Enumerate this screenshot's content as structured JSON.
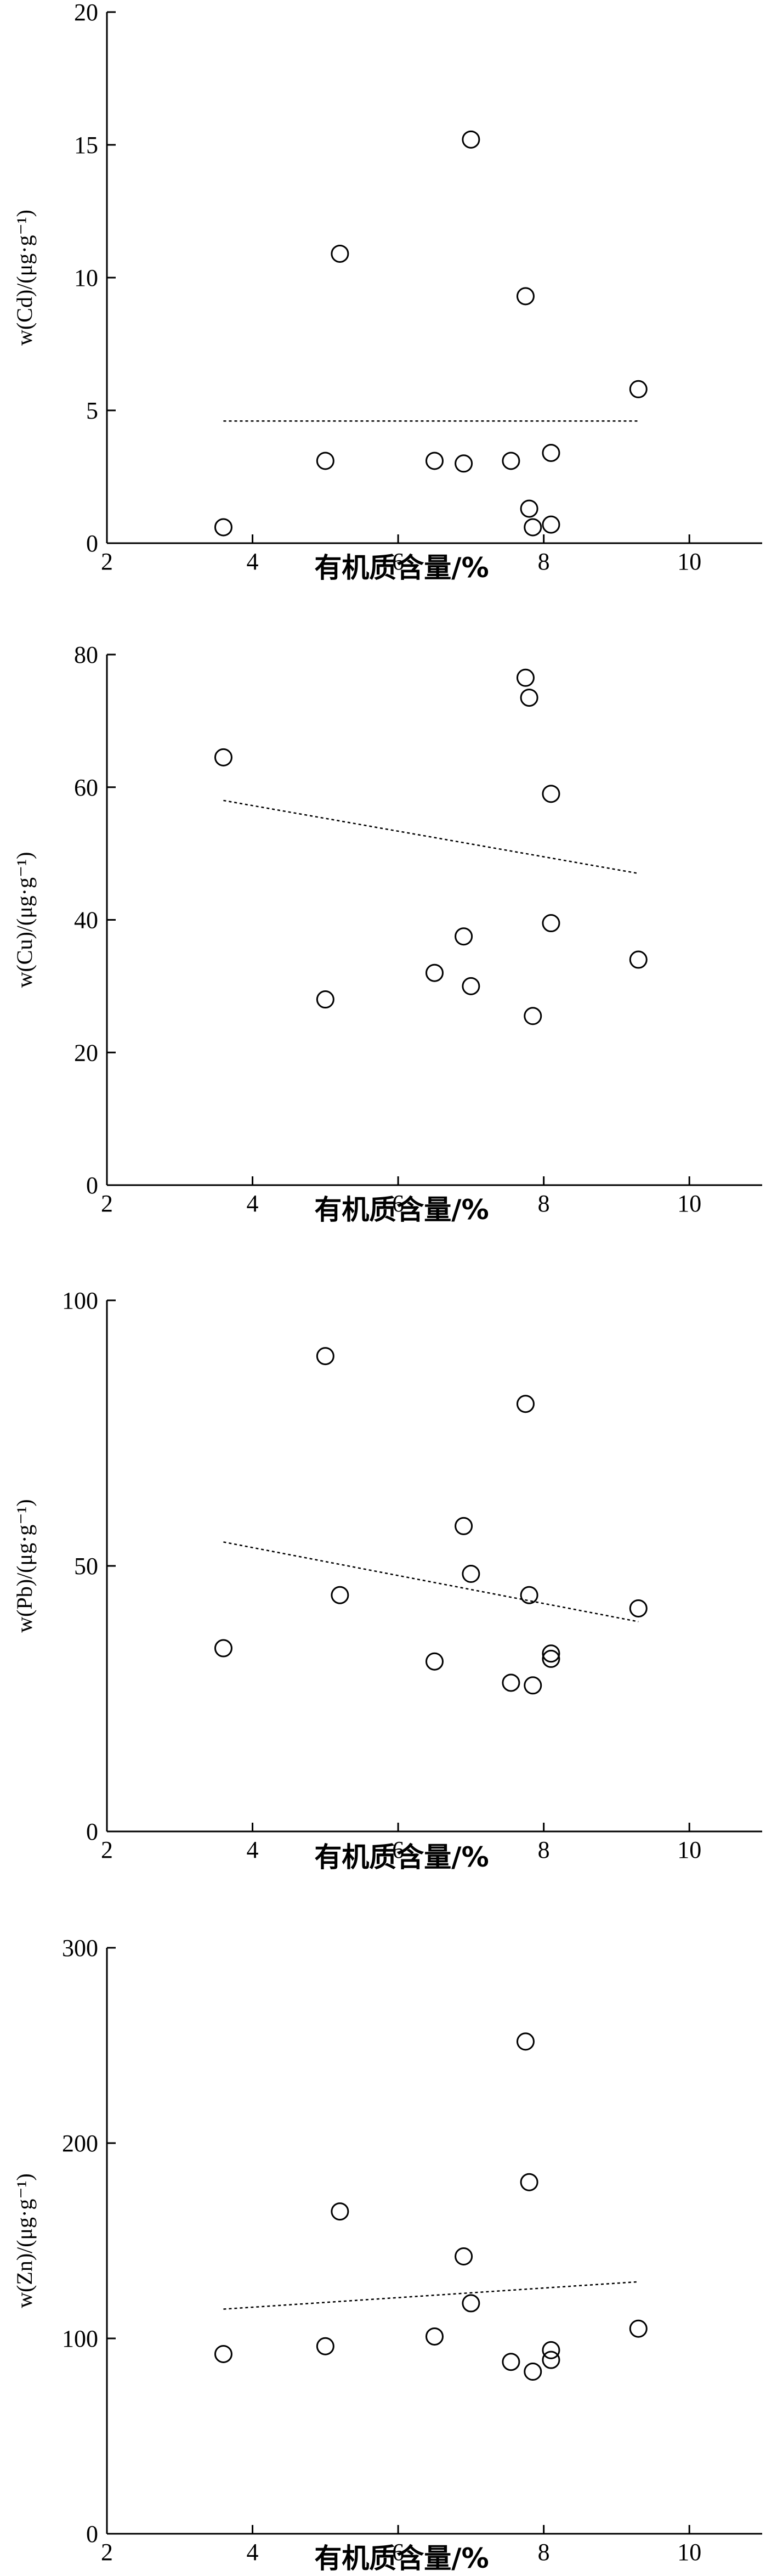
{
  "chart_data": [
    {
      "type": "scatter",
      "xlabel": "有机质含量/%",
      "ylabel": "w(Cd)/(μg·g⁻¹)",
      "xlim": [
        2,
        11
      ],
      "ylim": [
        0,
        20
      ],
      "xticks": [
        "2",
        "4",
        "6",
        "8",
        "10"
      ],
      "yticks": [
        "0",
        "5",
        "10",
        "15",
        "20"
      ],
      "xtick_values": [
        2,
        4,
        6,
        8,
        10
      ],
      "ytick_values": [
        0,
        5,
        10,
        15,
        20
      ],
      "points": [
        [
          3.6,
          0.6
        ],
        [
          5.0,
          3.1
        ],
        [
          5.2,
          10.9
        ],
        [
          6.5,
          3.1
        ],
        [
          6.9,
          3.0
        ],
        [
          7.0,
          15.2
        ],
        [
          7.55,
          3.1
        ],
        [
          7.75,
          9.3
        ],
        [
          7.8,
          1.3
        ],
        [
          7.85,
          0.6
        ],
        [
          8.1,
          3.4
        ],
        [
          8.1,
          0.7
        ],
        [
          9.3,
          5.8
        ]
      ],
      "trendline": [
        [
          3.6,
          4.6
        ],
        [
          9.3,
          4.6
        ]
      ],
      "grid": false
    },
    {
      "type": "scatter",
      "xlabel": "有机质含量/%",
      "ylabel": "w(Cu)/(μg·g⁻¹)",
      "xlim": [
        2,
        11
      ],
      "ylim": [
        0,
        80
      ],
      "xticks": [
        "2",
        "4",
        "6",
        "8",
        "10"
      ],
      "yticks": [
        "0",
        "20",
        "40",
        "60",
        "80"
      ],
      "xtick_values": [
        2,
        4,
        6,
        8,
        10
      ],
      "ytick_values": [
        0,
        20,
        40,
        60,
        80
      ],
      "points": [
        [
          3.6,
          64.5
        ],
        [
          5.0,
          28.0
        ],
        [
          6.5,
          32.0
        ],
        [
          6.9,
          37.5
        ],
        [
          7.0,
          30.0
        ],
        [
          7.75,
          76.5
        ],
        [
          7.8,
          73.5
        ],
        [
          7.85,
          25.5
        ],
        [
          8.1,
          59.0
        ],
        [
          8.1,
          39.5
        ],
        [
          9.3,
          34.0
        ]
      ],
      "trendline": [
        [
          3.6,
          58.0
        ],
        [
          9.3,
          47.0
        ]
      ],
      "grid": false
    },
    {
      "type": "scatter",
      "xlabel": "有机质含量/%",
      "ylabel": "w(Pb)/(μg·g⁻¹)",
      "xlim": [
        2,
        11
      ],
      "ylim": [
        0,
        100
      ],
      "xticks": [
        "2",
        "4",
        "6",
        "8",
        "10"
      ],
      "yticks": [
        "0",
        "50",
        "100"
      ],
      "xtick_values": [
        2,
        4,
        6,
        8,
        10
      ],
      "ytick_values": [
        0,
        50,
        100
      ],
      "points": [
        [
          3.6,
          34.5
        ],
        [
          5.0,
          89.5
        ],
        [
          5.2,
          44.5
        ],
        [
          6.5,
          32.0
        ],
        [
          6.9,
          57.5
        ],
        [
          7.0,
          48.5
        ],
        [
          7.55,
          28.0
        ],
        [
          7.75,
          80.5
        ],
        [
          7.8,
          44.5
        ],
        [
          7.85,
          27.5
        ],
        [
          8.1,
          33.5
        ],
        [
          8.1,
          32.5
        ],
        [
          9.3,
          42.0
        ]
      ],
      "trendline": [
        [
          3.6,
          54.5
        ],
        [
          9.3,
          39.5
        ]
      ],
      "grid": false
    },
    {
      "type": "scatter",
      "xlabel": "有机质含量/%",
      "ylabel": "w(Zn)/(μg·g⁻¹)",
      "xlim": [
        2,
        11
      ],
      "ylim": [
        0,
        300
      ],
      "xticks": [
        "2",
        "4",
        "6",
        "8",
        "10"
      ],
      "yticks": [
        "0",
        "100",
        "200",
        "300"
      ],
      "xtick_values": [
        2,
        4,
        6,
        8,
        10
      ],
      "ytick_values": [
        0,
        100,
        200,
        300
      ],
      "points": [
        [
          3.6,
          92.0
        ],
        [
          5.0,
          96.0
        ],
        [
          5.2,
          165.0
        ],
        [
          6.5,
          101.0
        ],
        [
          6.9,
          142.0
        ],
        [
          7.0,
          118.0
        ],
        [
          7.55,
          88.0
        ],
        [
          7.75,
          252.0
        ],
        [
          7.8,
          180.0
        ],
        [
          7.85,
          83.0
        ],
        [
          8.1,
          94.0
        ],
        [
          8.1,
          89.0
        ],
        [
          9.3,
          105.0
        ]
      ],
      "trendline": [
        [
          3.6,
          115.0
        ],
        [
          9.3,
          129.0
        ]
      ],
      "grid": false
    }
  ]
}
